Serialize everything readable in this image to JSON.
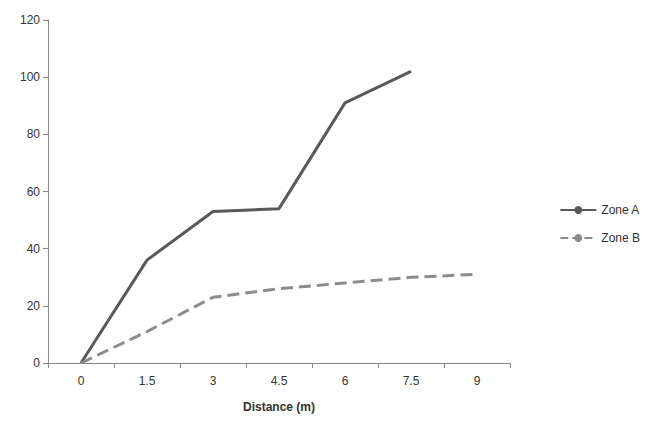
{
  "chart_data": {
    "type": "line",
    "x_label": "Distance (m)",
    "categories": [
      "0",
      "1.5",
      "3",
      "4.5",
      "6",
      "7.5",
      "9"
    ],
    "series": [
      {
        "name": "Zone A",
        "color": "#595959",
        "line_style": "solid",
        "values": [
          0,
          36,
          53,
          54,
          91,
          102,
          null
        ]
      },
      {
        "name": "Zone B",
        "color": "#8c8c8c",
        "line_style": "dashed",
        "values": [
          0,
          11,
          23,
          26,
          28,
          30,
          31
        ]
      }
    ],
    "ylim": [
      0,
      120
    ],
    "yticks": [
      0,
      20,
      40,
      60,
      80,
      100,
      120
    ],
    "grid": false,
    "legend": "right"
  }
}
